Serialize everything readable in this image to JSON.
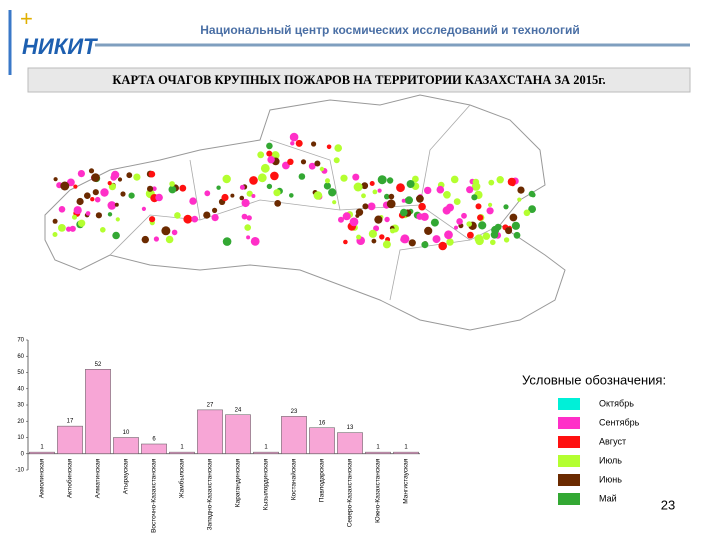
{
  "header": {
    "logo": "НИКИТ",
    "organization": "Национальный центр космических исследований и технологий"
  },
  "title": "КАРТА ОЧАГОВ КРУПНЫХ ПОЖАРОВ НА ТЕРРИТОРИИ КАЗАХСТАНА ЗА 2015г.",
  "legend": {
    "title": "Условные обозначения:",
    "items": [
      {
        "label": "Октябрь",
        "color": "#00f0d8"
      },
      {
        "label": "Сентябрь",
        "color": "#ff2fc8"
      },
      {
        "label": "Август",
        "color": "#ff1010"
      },
      {
        "label": "Июль",
        "color": "#b4ff30"
      },
      {
        "label": "Июнь",
        "color": "#6b2a00"
      },
      {
        "label": "Май",
        "color": "#33a833"
      }
    ]
  },
  "page_number": "23",
  "chart_data": {
    "type": "bar",
    "categories": [
      "Акмолинская",
      "Актюбинская",
      "Алматинская",
      "Атырауская",
      "Восточно-Казахстанская",
      "Жамбылская",
      "Западно-Казахстанская",
      "Карагандинская",
      "Кызылординская",
      "Костанайская",
      "Павлодарская",
      "Северо-Казахстанская",
      "Южно-Казахстанская",
      "Мангистауская"
    ],
    "values": [
      1,
      17,
      52,
      10,
      6,
      1,
      27,
      24,
      1,
      23,
      16,
      13,
      1,
      1
    ],
    "color": "#f7a6d6",
    "ylim": [
      -10,
      70
    ],
    "yticks": [
      -10,
      0,
      10,
      20,
      30,
      40,
      50,
      60,
      70
    ]
  }
}
